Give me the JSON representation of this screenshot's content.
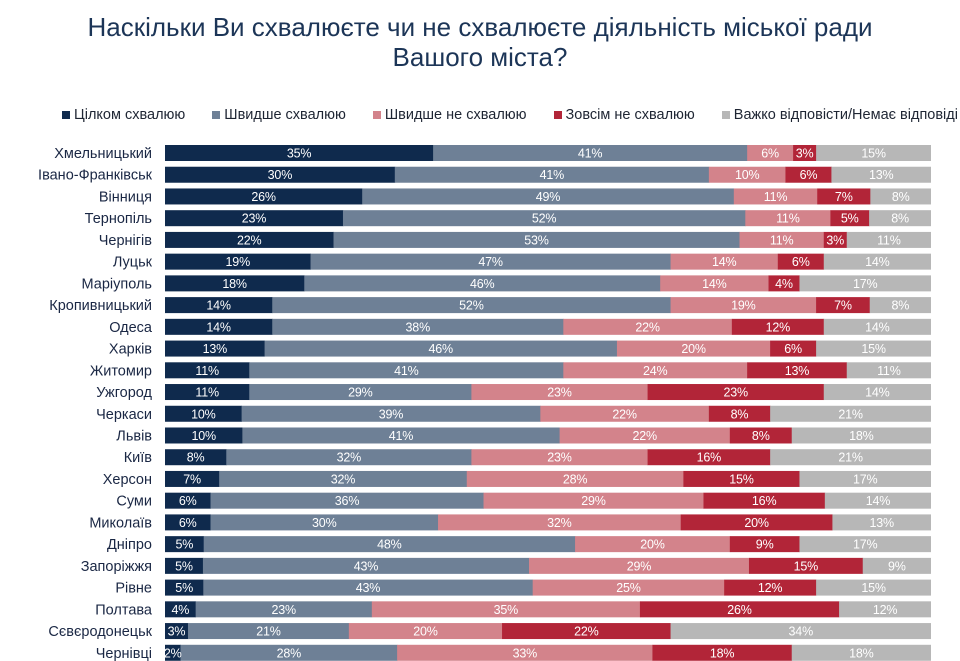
{
  "chart_data": {
    "type": "bar",
    "orientation": "horizontal",
    "stacked": true,
    "title_lines": [
      "Наскільки Ви схвалюєте чи не схвалюєте діяльність міської ради",
      "Вашого міста?"
    ],
    "value_suffix": "%",
    "legend_position": "top",
    "grid": false,
    "xlim": [
      0,
      100
    ],
    "categories": [
      "Хмельницький",
      "Івано-Франківськ",
      "Вінниця",
      "Тернопіль",
      "Чернігів",
      "Луцьк",
      "Маріуполь",
      "Кропивницький",
      "Одеса",
      "Харків",
      "Житомир",
      "Ужгород",
      "Черкаси",
      "Львів",
      "Київ",
      "Херсон",
      "Суми",
      "Миколаїв",
      "Дніпро",
      "Запоріжжя",
      "Рівне",
      "Полтава",
      "Сєвєродонецьк",
      "Чернівці"
    ],
    "series": [
      {
        "name": "Цілком схвалюю",
        "color": "#0f2a4d",
        "values": [
          35,
          30,
          26,
          23,
          22,
          19,
          18,
          14,
          14,
          13,
          11,
          11,
          10,
          10,
          8,
          7,
          6,
          6,
          5,
          5,
          5,
          4,
          3,
          2
        ]
      },
      {
        "name": "Швидше схвалюю",
        "color": "#6e8096",
        "values": [
          41,
          41,
          49,
          52,
          53,
          47,
          46,
          52,
          38,
          46,
          41,
          29,
          39,
          41,
          32,
          32,
          36,
          30,
          48,
          43,
          43,
          23,
          21,
          28
        ]
      },
      {
        "name": "Швидше не схвалюю",
        "color": "#d3838b",
        "values": [
          6,
          10,
          11,
          11,
          11,
          14,
          14,
          19,
          22,
          20,
          24,
          23,
          22,
          22,
          23,
          28,
          29,
          32,
          20,
          29,
          25,
          35,
          20,
          33
        ]
      },
      {
        "name": "Зовсім не схвалюю",
        "color": "#b22538",
        "values": [
          3,
          6,
          7,
          5,
          3,
          6,
          4,
          7,
          12,
          6,
          13,
          23,
          8,
          8,
          16,
          15,
          16,
          20,
          9,
          15,
          12,
          26,
          22,
          18
        ]
      },
      {
        "name": "Важко відповісти/Немає відповіді",
        "color": "#b7b7b7",
        "values": [
          15,
          13,
          8,
          8,
          11,
          14,
          17,
          8,
          14,
          15,
          11,
          14,
          21,
          18,
          21,
          17,
          14,
          13,
          17,
          9,
          15,
          12,
          34,
          18
        ]
      }
    ]
  }
}
